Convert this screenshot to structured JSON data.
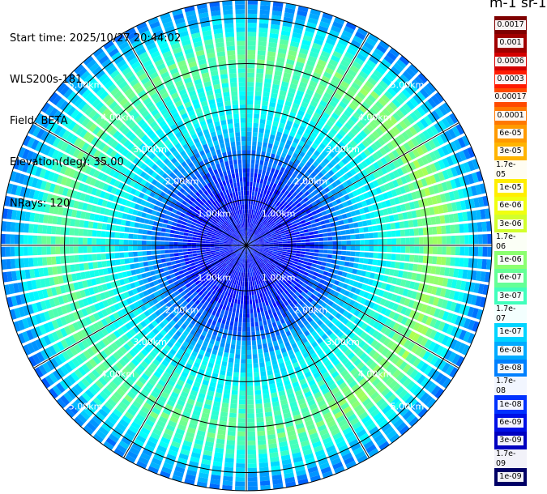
{
  "header": {
    "start_time": "Start time: 2025/10/27 20:44:02",
    "instrument": "WLS200s-181",
    "field": "Field: BETA",
    "elevation": "Elevation(deg): 35.00",
    "nrays": "NRays: 120"
  },
  "colorbar": {
    "title": "m-1 sr-1",
    "labels": [
      "0.0017",
      "0.001",
      "0.0006",
      "0.0003",
      "0.00017",
      "0.0001",
      "6e-05",
      "3e-05",
      "1.7e-05",
      "1e-05",
      "6e-06",
      "3e-06",
      "1.7e-06",
      "1e-06",
      "6e-07",
      "3e-07",
      "1.7e-07",
      "1e-07",
      "6e-08",
      "3e-08",
      "1.7e-08",
      "1e-08",
      "6e-09",
      "3e-09",
      "1.7e-09",
      "1e-09"
    ],
    "colors": [
      "#7f0000",
      "#a00000",
      "#d40000",
      "#ff1a00",
      "#ff4a00",
      "#ff7800",
      "#ff9a00",
      "#ffb400",
      "#ffd200",
      "#ffee00",
      "#f0ff10",
      "#d2ff2c",
      "#b4ff4a",
      "#8cff70",
      "#64ff96",
      "#40ffbc",
      "#1ef0e0",
      "#00d4ff",
      "#00aaff",
      "#0080ff",
      "#0058ff",
      "#0032ff",
      "#0010e6",
      "#0000c0",
      "#000090",
      "#000066"
    ]
  },
  "chart_data": {
    "type": "heatmap",
    "projection": "polar (PPI scan)",
    "field": "BETA",
    "units": "m-1 sr-1",
    "elevation_deg": 35.0,
    "n_rays": 120,
    "range_rings_km": [
      1.0,
      2.0,
      3.0,
      4.0,
      5.0
    ],
    "ring_labels": [
      "1.00km",
      "2.00km",
      "3.00km",
      "4.00km",
      "5.00km"
    ],
    "max_range_km": 5.4,
    "radial_profile_log10": [
      [
        0.0,
        -7.8
      ],
      [
        0.3,
        -8.1
      ],
      [
        0.8,
        -8.15
      ],
      [
        1.3,
        -8.0
      ],
      [
        1.8,
        -7.6
      ],
      [
        2.3,
        -7.1
      ],
      [
        2.8,
        -6.6
      ],
      [
        3.1,
        -6.45
      ],
      [
        3.6,
        -6.2
      ],
      [
        4.0,
        -6.0
      ],
      [
        4.3,
        -5.95
      ],
      [
        4.6,
        -6.3
      ],
      [
        5.0,
        -6.9
      ],
      [
        5.4,
        -7.4
      ]
    ],
    "color_scale": "log, 1e-09 to 0.0017"
  }
}
